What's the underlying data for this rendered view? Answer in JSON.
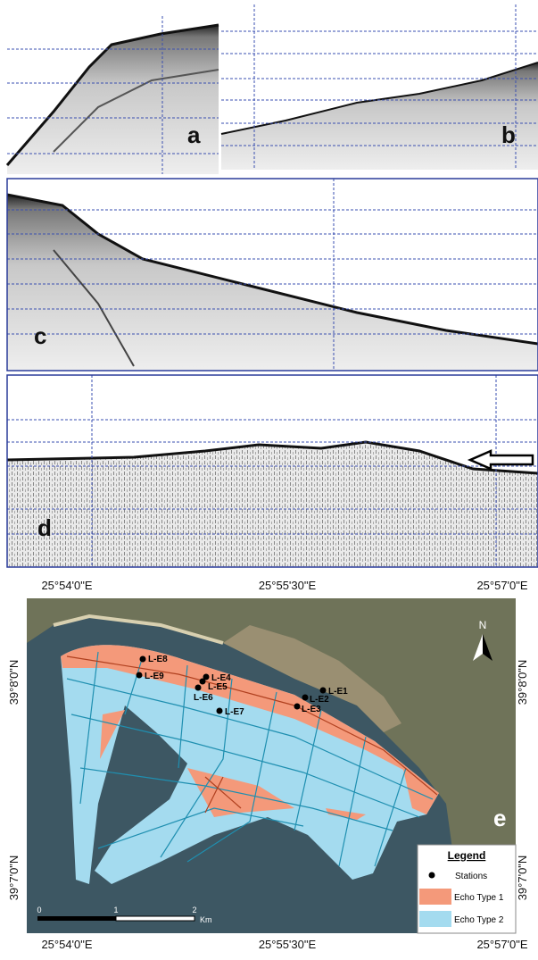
{
  "panels": {
    "a": "a",
    "b": "b",
    "c": "c",
    "d": "d",
    "e": "e"
  },
  "map": {
    "top_labels": [
      "25°54'0\"E",
      "25°55'30\"E",
      "25°57'0\"E"
    ],
    "bottom_labels": [
      "25°54'0\"E",
      "25°55'30\"E",
      "25°57'0\"E"
    ],
    "left_labels": [
      "39°8'0\"N",
      "39°7'0\"N"
    ],
    "right_labels": [
      "39°8'0\"N",
      "39°7'0\"N"
    ],
    "north": "N",
    "stations": [
      "L-E1",
      "L-E2",
      "L-E3",
      "L-E4",
      "L-E5",
      "L-E6",
      "L-E7",
      "L-E8",
      "L-E9"
    ],
    "legend": {
      "title": "Legend",
      "items": [
        "Stations",
        "Echo Type 1",
        "Echo Type 2"
      ]
    },
    "scale": {
      "ticks": [
        "0",
        "1",
        "2"
      ],
      "unit": "Km"
    }
  }
}
